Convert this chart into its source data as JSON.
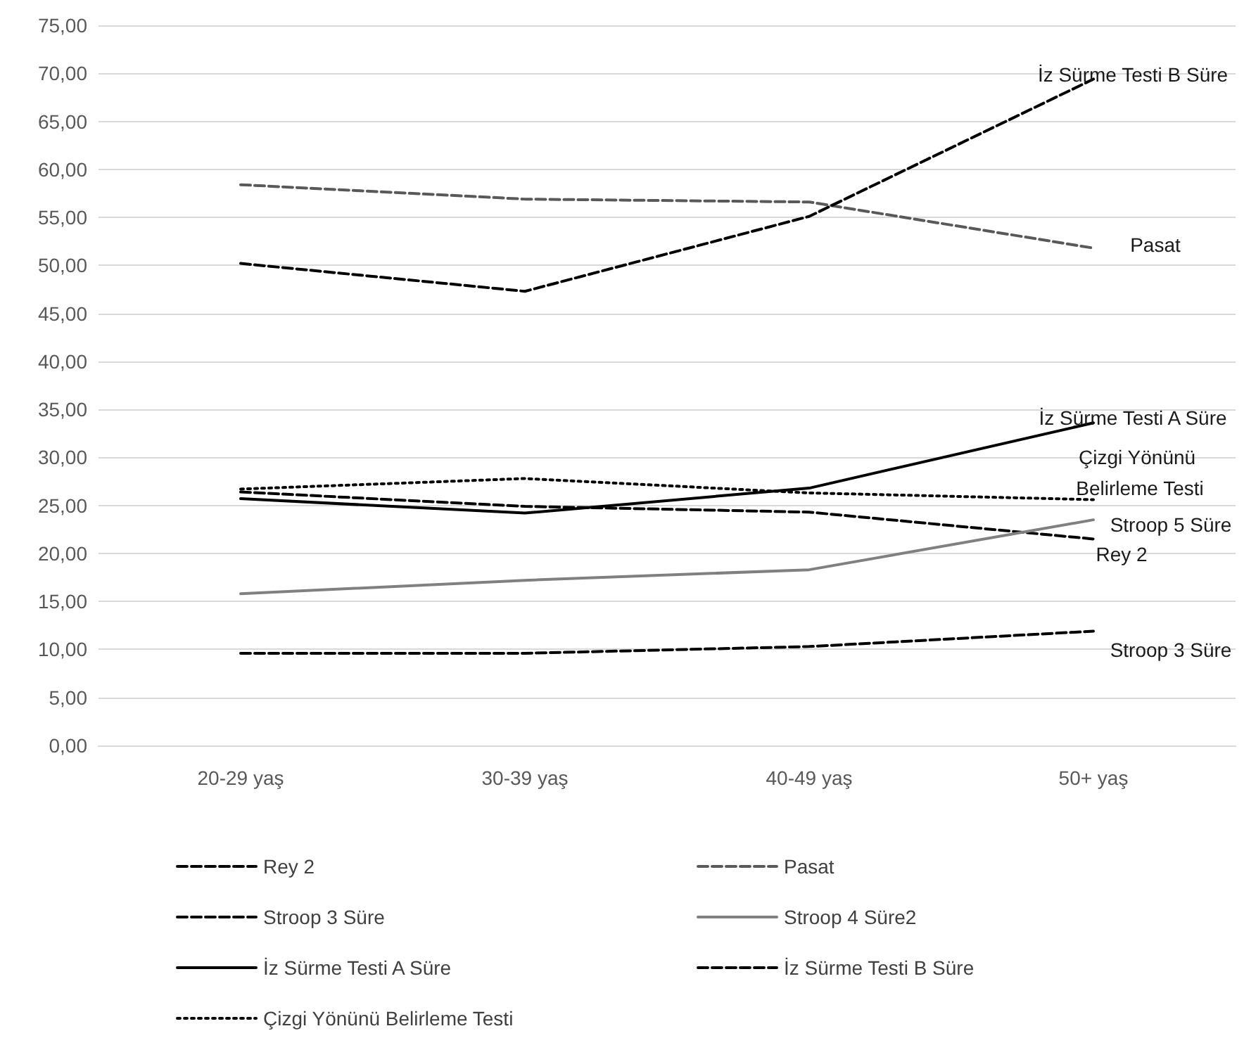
{
  "chart_data": {
    "type": "line",
    "categories": [
      "20-29 yaş",
      "30-39 yaş",
      "40-49 yaş",
      "50+ yaş"
    ],
    "series": [
      {
        "name": "Rey 2",
        "color": "#000000",
        "line_style": "dashed",
        "values": [
          26.4,
          24.9,
          24.3,
          21.5
        ]
      },
      {
        "name": "Pasat",
        "color": "#595959",
        "line_style": "dashed",
        "values": [
          58.4,
          56.9,
          56.6,
          51.8
        ]
      },
      {
        "name": "Stroop 3 Süre",
        "color": "#000000",
        "line_style": "dashed",
        "values": [
          9.6,
          9.6,
          10.3,
          11.9
        ]
      },
      {
        "name": "Stroop 4 Süre2",
        "color": "#808080",
        "line_style": "solid",
        "values": [
          15.8,
          17.2,
          18.3,
          23.5
        ]
      },
      {
        "name": "İz Sürme Testi A Süre",
        "color": "#000000",
        "line_style": "solid",
        "values": [
          25.7,
          24.2,
          26.8,
          33.6
        ]
      },
      {
        "name": "İz Sürme Testi B Süre",
        "color": "#000000",
        "line_style": "dashed",
        "values": [
          50.2,
          47.3,
          55.1,
          69.4
        ]
      },
      {
        "name": "Çizgi Yönünü Belirleme Testi",
        "color": "#000000",
        "line_style": "dotted",
        "values": [
          26.7,
          27.8,
          26.3,
          25.6
        ]
      }
    ],
    "ylim": [
      0,
      75
    ],
    "yticks": [
      {
        "value": 0,
        "label": "0,00"
      },
      {
        "value": 5,
        "label": "5,00"
      },
      {
        "value": 10,
        "label": "10,00"
      },
      {
        "value": 15,
        "label": "15,00"
      },
      {
        "value": 20,
        "label": "20,00"
      },
      {
        "value": 25,
        "label": "25,00"
      },
      {
        "value": 30,
        "label": "30,00"
      },
      {
        "value": 35,
        "label": "35,00"
      },
      {
        "value": 40,
        "label": "40,00"
      },
      {
        "value": 45,
        "label": "45,00"
      },
      {
        "value": 50,
        "label": "50,00"
      },
      {
        "value": 55,
        "label": "55,00"
      },
      {
        "value": 60,
        "label": "60,00"
      },
      {
        "value": 65,
        "label": "65,00"
      },
      {
        "value": 70,
        "label": "70,00"
      },
      {
        "value": 75,
        "label": "75,00"
      }
    ],
    "grid": "y",
    "legend": "bottom",
    "marker": "none",
    "annotations": [
      "İz Sürme Testi B Süre",
      "Pasat",
      "İz Sürme Testi A Süre",
      "Çizgi Yönünü Belirleme Testi",
      "Stroop 5 Süre",
      "Rey 2",
      "Stroop 3 Süre"
    ]
  }
}
